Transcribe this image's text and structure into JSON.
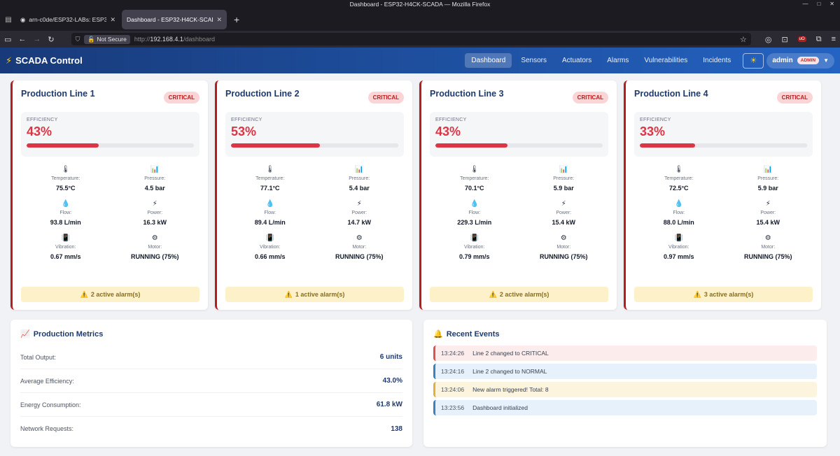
{
  "window": {
    "title": "Dashboard - ESP32-H4CK-SCADA — Mozilla Firefox"
  },
  "browser": {
    "tabs": [
      {
        "label": "arn-c0de/ESP32-LABs: ESP3"
      },
      {
        "label": "Dashboard - ESP32-H4CK-SCAD"
      }
    ],
    "security_label": "Not Secure",
    "url_prefix": "http://",
    "url_host": "192.168.4.1",
    "url_path": "/dashboard"
  },
  "app": {
    "brand": "SCADA Control",
    "nav": [
      "Dashboard",
      "Sensors",
      "Actuators",
      "Alarms",
      "Vulnerabilities",
      "Incidents"
    ],
    "user": "admin",
    "role": "ADMIN"
  },
  "labels": {
    "efficiency": "EFFICIENCY",
    "temperature": "Temperature:",
    "pressure": "Pressure:",
    "flow": "Flow:",
    "power": "Power:",
    "vibration": "Vibration:",
    "motor": "Motor:"
  },
  "lines": [
    {
      "title": "Production Line 1",
      "status": "CRITICAL",
      "efficiency": "43%",
      "efficiency_pct": 43,
      "temperature": "75.5°C",
      "pressure": "4.5 bar",
      "flow": "93.8 L/min",
      "power": "16.3 kW",
      "vibration": "0.67 mm/s",
      "motor": "RUNNING (75%)",
      "alarms": "2 active alarm(s)"
    },
    {
      "title": "Production Line 2",
      "status": "CRITICAL",
      "efficiency": "53%",
      "efficiency_pct": 53,
      "temperature": "77.1°C",
      "pressure": "5.4 bar",
      "flow": "89.4 L/min",
      "power": "14.7 kW",
      "vibration": "0.66 mm/s",
      "motor": "RUNNING (75%)",
      "alarms": "1 active alarm(s)"
    },
    {
      "title": "Production Line 3",
      "status": "CRITICAL",
      "efficiency": "43%",
      "efficiency_pct": 43,
      "temperature": "70.1°C",
      "pressure": "5.9 bar",
      "flow": "229.3 L/min",
      "power": "15.4 kW",
      "vibration": "0.79 mm/s",
      "motor": "RUNNING (75%)",
      "alarms": "2 active alarm(s)"
    },
    {
      "title": "Production Line 4",
      "status": "CRITICAL",
      "efficiency": "33%",
      "efficiency_pct": 33,
      "temperature": "72.5°C",
      "pressure": "5.9 bar",
      "flow": "88.0 L/min",
      "power": "15.4 kW",
      "vibration": "0.97 mm/s",
      "motor": "RUNNING (75%)",
      "alarms": "3 active alarm(s)"
    }
  ],
  "production_metrics": {
    "title": "Production Metrics",
    "rows": [
      {
        "label": "Total Output:",
        "value": "6 units"
      },
      {
        "label": "Average Efficiency:",
        "value": "43.0%"
      },
      {
        "label": "Energy Consumption:",
        "value": "61.8 kW"
      },
      {
        "label": "Network Requests:",
        "value": "138"
      }
    ]
  },
  "recent_events": {
    "title": "Recent Events",
    "items": [
      {
        "time": "13:24:26",
        "text": "Line 2 changed to CRITICAL",
        "kind": "crit"
      },
      {
        "time": "13:24:16",
        "text": "Line 2 changed to NORMAL",
        "kind": "norm"
      },
      {
        "time": "13:24:06",
        "text": "New alarm triggered! Total: 8",
        "kind": "warn"
      },
      {
        "time": "13:23:56",
        "text": "Dashboard initialized",
        "kind": "info"
      }
    ]
  },
  "colors": {
    "critical": "#dc3545",
    "header_start": "#183a7a",
    "header_end": "#2463c2"
  }
}
